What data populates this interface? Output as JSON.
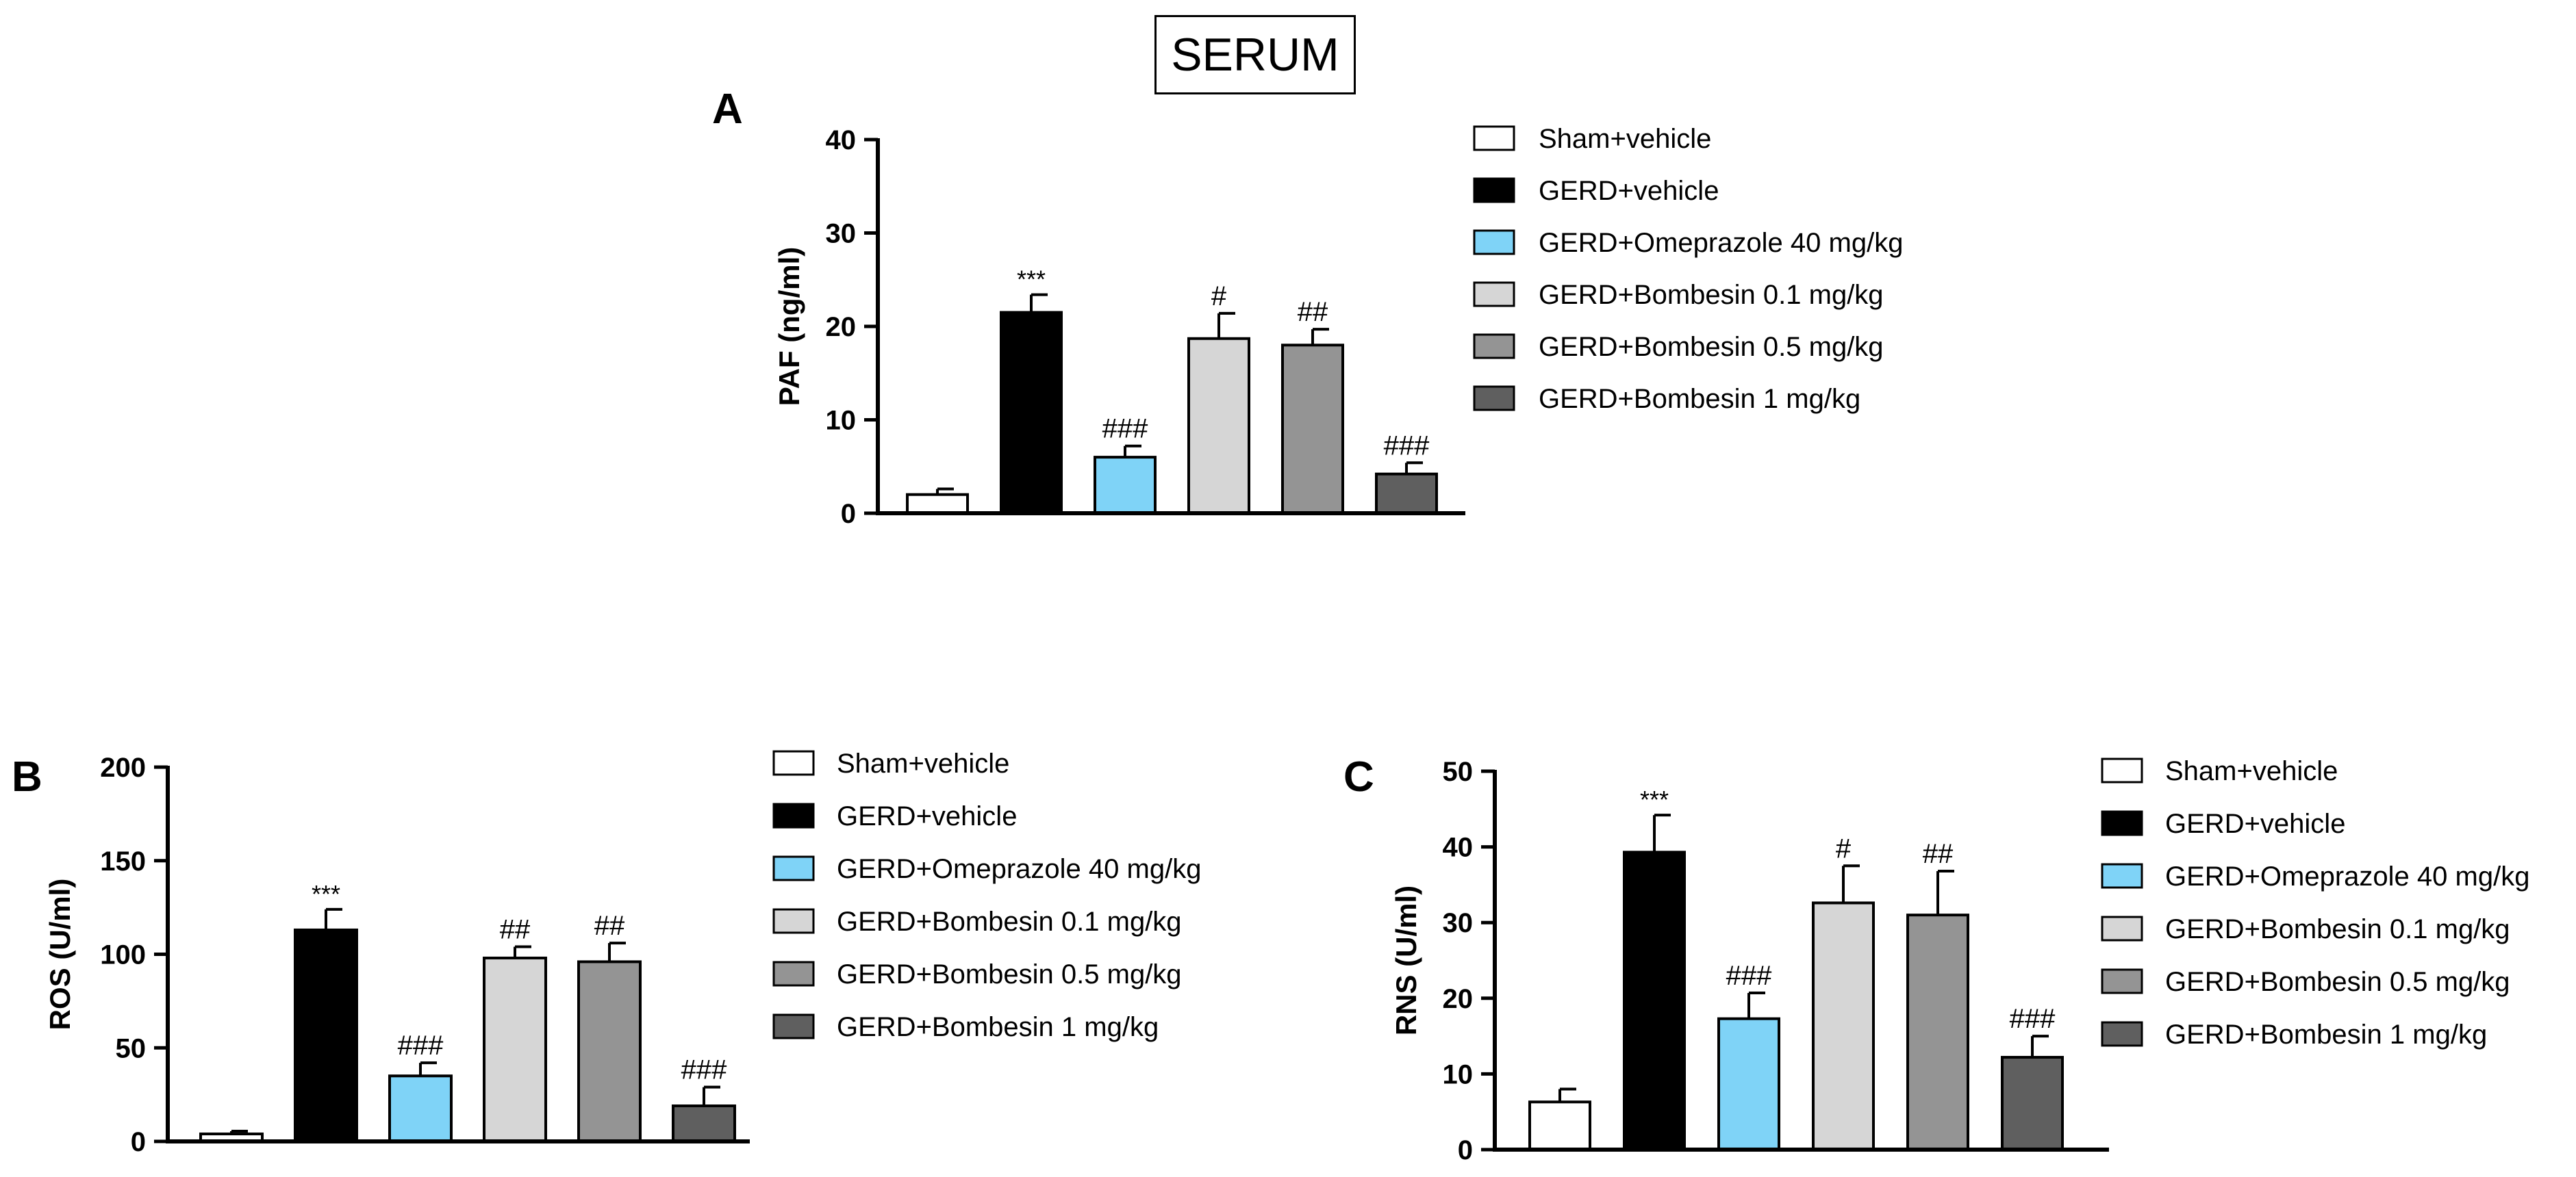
{
  "figure_title": "SERUM",
  "chart_data": [
    {
      "id": "A",
      "panel_label": "A",
      "type": "bar",
      "ylabel": "PAF  (ng/ml)",
      "ylim": [
        0,
        40
      ],
      "yticks": [
        0,
        10,
        20,
        30,
        40
      ],
      "categories": [
        "Sham+vehicle",
        "GERD+vehicle",
        "GERD+Omeprazole 40 mg/kg",
        "GERD+Bombesin 0.1 mg/kg",
        "GERD+Bombesin 0.5 mg/kg",
        "GERD+Bombesin 1 mg/kg"
      ],
      "values": [
        2,
        21.5,
        6,
        18.7,
        18,
        4.2
      ],
      "errors": [
        0.6,
        1.9,
        1.2,
        2.7,
        1.7,
        1.2
      ],
      "annotations": [
        "",
        "***",
        "###",
        "#",
        "##",
        "###"
      ],
      "legend": [
        "Sham+vehicle",
        "GERD+vehicle",
        "GERD+Omeprazole 40 mg/kg",
        "GERD+Bombesin 0.1 mg/kg",
        "GERD+Bombesin 0.5 mg/kg",
        "GERD+Bombesin 1 mg/kg"
      ],
      "colors": [
        "#ffffff",
        "#000000",
        "#7fd3f7",
        "#d6d6d6",
        "#949494",
        "#5f5f5f"
      ]
    },
    {
      "id": "B",
      "panel_label": "B",
      "type": "bar",
      "ylabel": "ROS (U/ml)",
      "ylim": [
        0,
        200
      ],
      "yticks": [
        0,
        50,
        100,
        150,
        200
      ],
      "categories": [
        "Sham+vehicle",
        "GERD+vehicle",
        "GERD+Omeprazole 40 mg/kg",
        "GERD+Bombesin 0.1 mg/kg",
        "GERD+Bombesin 0.5 mg/kg",
        "GERD+Bombesin 1 mg/kg"
      ],
      "values": [
        4,
        113,
        35,
        98,
        96,
        19
      ],
      "errors": [
        1.5,
        11,
        7,
        6,
        10,
        10
      ],
      "annotations": [
        "",
        "***",
        "###",
        "##",
        "##",
        "###"
      ],
      "legend": [
        "Sham+vehicle",
        "GERD+vehicle",
        "GERD+Omeprazole 40 mg/kg",
        "GERD+Bombesin 0.1 mg/kg",
        "GERD+Bombesin 0.5 mg/kg",
        "GERD+Bombesin 1 mg/kg"
      ],
      "colors": [
        "#ffffff",
        "#000000",
        "#7fd3f7",
        "#d6d6d6",
        "#949494",
        "#5f5f5f"
      ]
    },
    {
      "id": "C",
      "panel_label": "C",
      "type": "bar",
      "ylabel": "RNS (U/ml)",
      "ylim": [
        0,
        50
      ],
      "yticks": [
        0,
        10,
        20,
        30,
        40,
        50
      ],
      "categories": [
        "Sham+vehicle",
        "GERD+vehicle",
        "GERD+Omeprazole 40 mg/kg",
        "GERD+Bombesin 0.1 mg/kg",
        "GERD+Bombesin 0.5 mg/kg",
        "GERD+Bombesin 1 mg/kg"
      ],
      "values": [
        6.3,
        39.3,
        17.3,
        32.6,
        31,
        12.2
      ],
      "errors": [
        1.7,
        4.9,
        3.4,
        4.9,
        5.8,
        2.8
      ],
      "annotations": [
        "",
        "***",
        "###",
        "#",
        "##",
        "###"
      ],
      "legend": [
        "Sham+vehicle",
        "GERD+vehicle",
        "GERD+Omeprazole 40 mg/kg",
        "GERD+Bombesin 0.1 mg/kg",
        "GERD+Bombesin 0.5 mg/kg",
        "GERD+Bombesin 1 mg/kg"
      ],
      "colors": [
        "#ffffff",
        "#000000",
        "#7fd3f7",
        "#d6d6d6",
        "#949494",
        "#5f5f5f"
      ]
    }
  ]
}
